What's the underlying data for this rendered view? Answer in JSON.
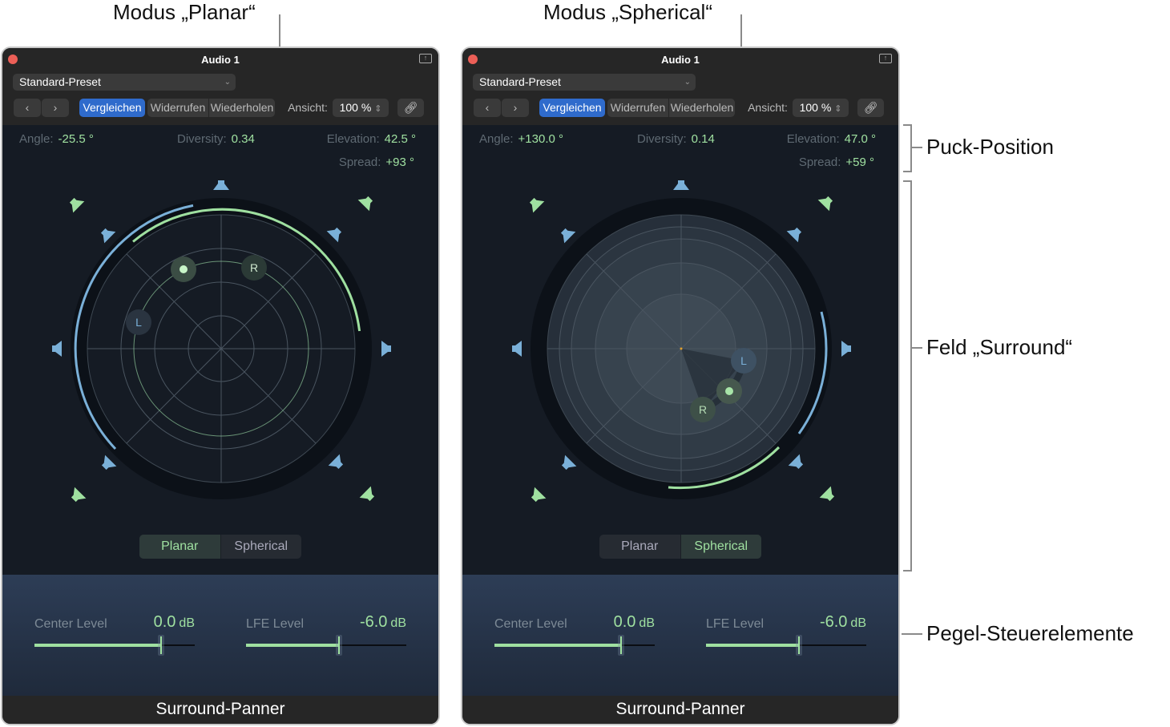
{
  "annotations": {
    "planar_mode": "Modus „Planar“",
    "spherical_mode": "Modus „Spherical“",
    "puck_position": "Puck-Position",
    "surround_field": "Feld „Surround“",
    "level_controls": "Pegel-Steuerelemente"
  },
  "colors": {
    "accent_green": "#9fe0a0",
    "accent_blue": "#7ab0d8",
    "button_blue": "#2f6bcc",
    "close": "#ec5f57"
  },
  "panels": [
    {
      "title": "Audio 1",
      "preset": "Standard-Preset",
      "toolbar": {
        "prev": "‹",
        "next": "›",
        "compare": "Vergleichen",
        "undo": "Widerrufen",
        "redo": "Wiederholen",
        "view_label": "Ansicht:",
        "zoom": "100 %",
        "link_icon": "link-icon"
      },
      "params": {
        "angle_label": "Angle:",
        "angle": "-25.5 °",
        "diversity_label": "Diversity:",
        "diversity": "0.34",
        "elevation_label": "Elevation:",
        "elevation": "42.5 °",
        "spread_label": "Spread:",
        "spread": "+93 °"
      },
      "mode": {
        "planar": "Planar",
        "spherical": "Spherical",
        "active": "planar"
      },
      "puck": {
        "left_label": "L",
        "right_label": "R"
      },
      "levels": {
        "center_label": "Center Level",
        "center_value": "0.0",
        "center_unit": "dB",
        "center_fraction": 0.79,
        "lfe_label": "LFE Level",
        "lfe_value": "-6.0",
        "lfe_unit": "dB",
        "lfe_fraction": 0.58
      },
      "footer": "Surround-Panner"
    },
    {
      "title": "Audio 1",
      "preset": "Standard-Preset",
      "toolbar": {
        "prev": "‹",
        "next": "›",
        "compare": "Vergleichen",
        "undo": "Widerrufen",
        "redo": "Wiederholen",
        "view_label": "Ansicht:",
        "zoom": "100 %",
        "link_icon": "link-icon"
      },
      "params": {
        "angle_label": "Angle:",
        "angle": "+130.0 °",
        "diversity_label": "Diversity:",
        "diversity": "0.14",
        "elevation_label": "Elevation:",
        "elevation": "47.0 °",
        "spread_label": "Spread:",
        "spread": "+59 °"
      },
      "mode": {
        "planar": "Planar",
        "spherical": "Spherical",
        "active": "spherical"
      },
      "puck": {
        "left_label": "L",
        "right_label": "R"
      },
      "levels": {
        "center_label": "Center Level",
        "center_value": "0.0",
        "center_unit": "dB",
        "center_fraction": 0.79,
        "lfe_label": "LFE Level",
        "lfe_value": "-6.0",
        "lfe_unit": "dB",
        "lfe_fraction": 0.58
      },
      "footer": "Surround-Panner"
    }
  ]
}
